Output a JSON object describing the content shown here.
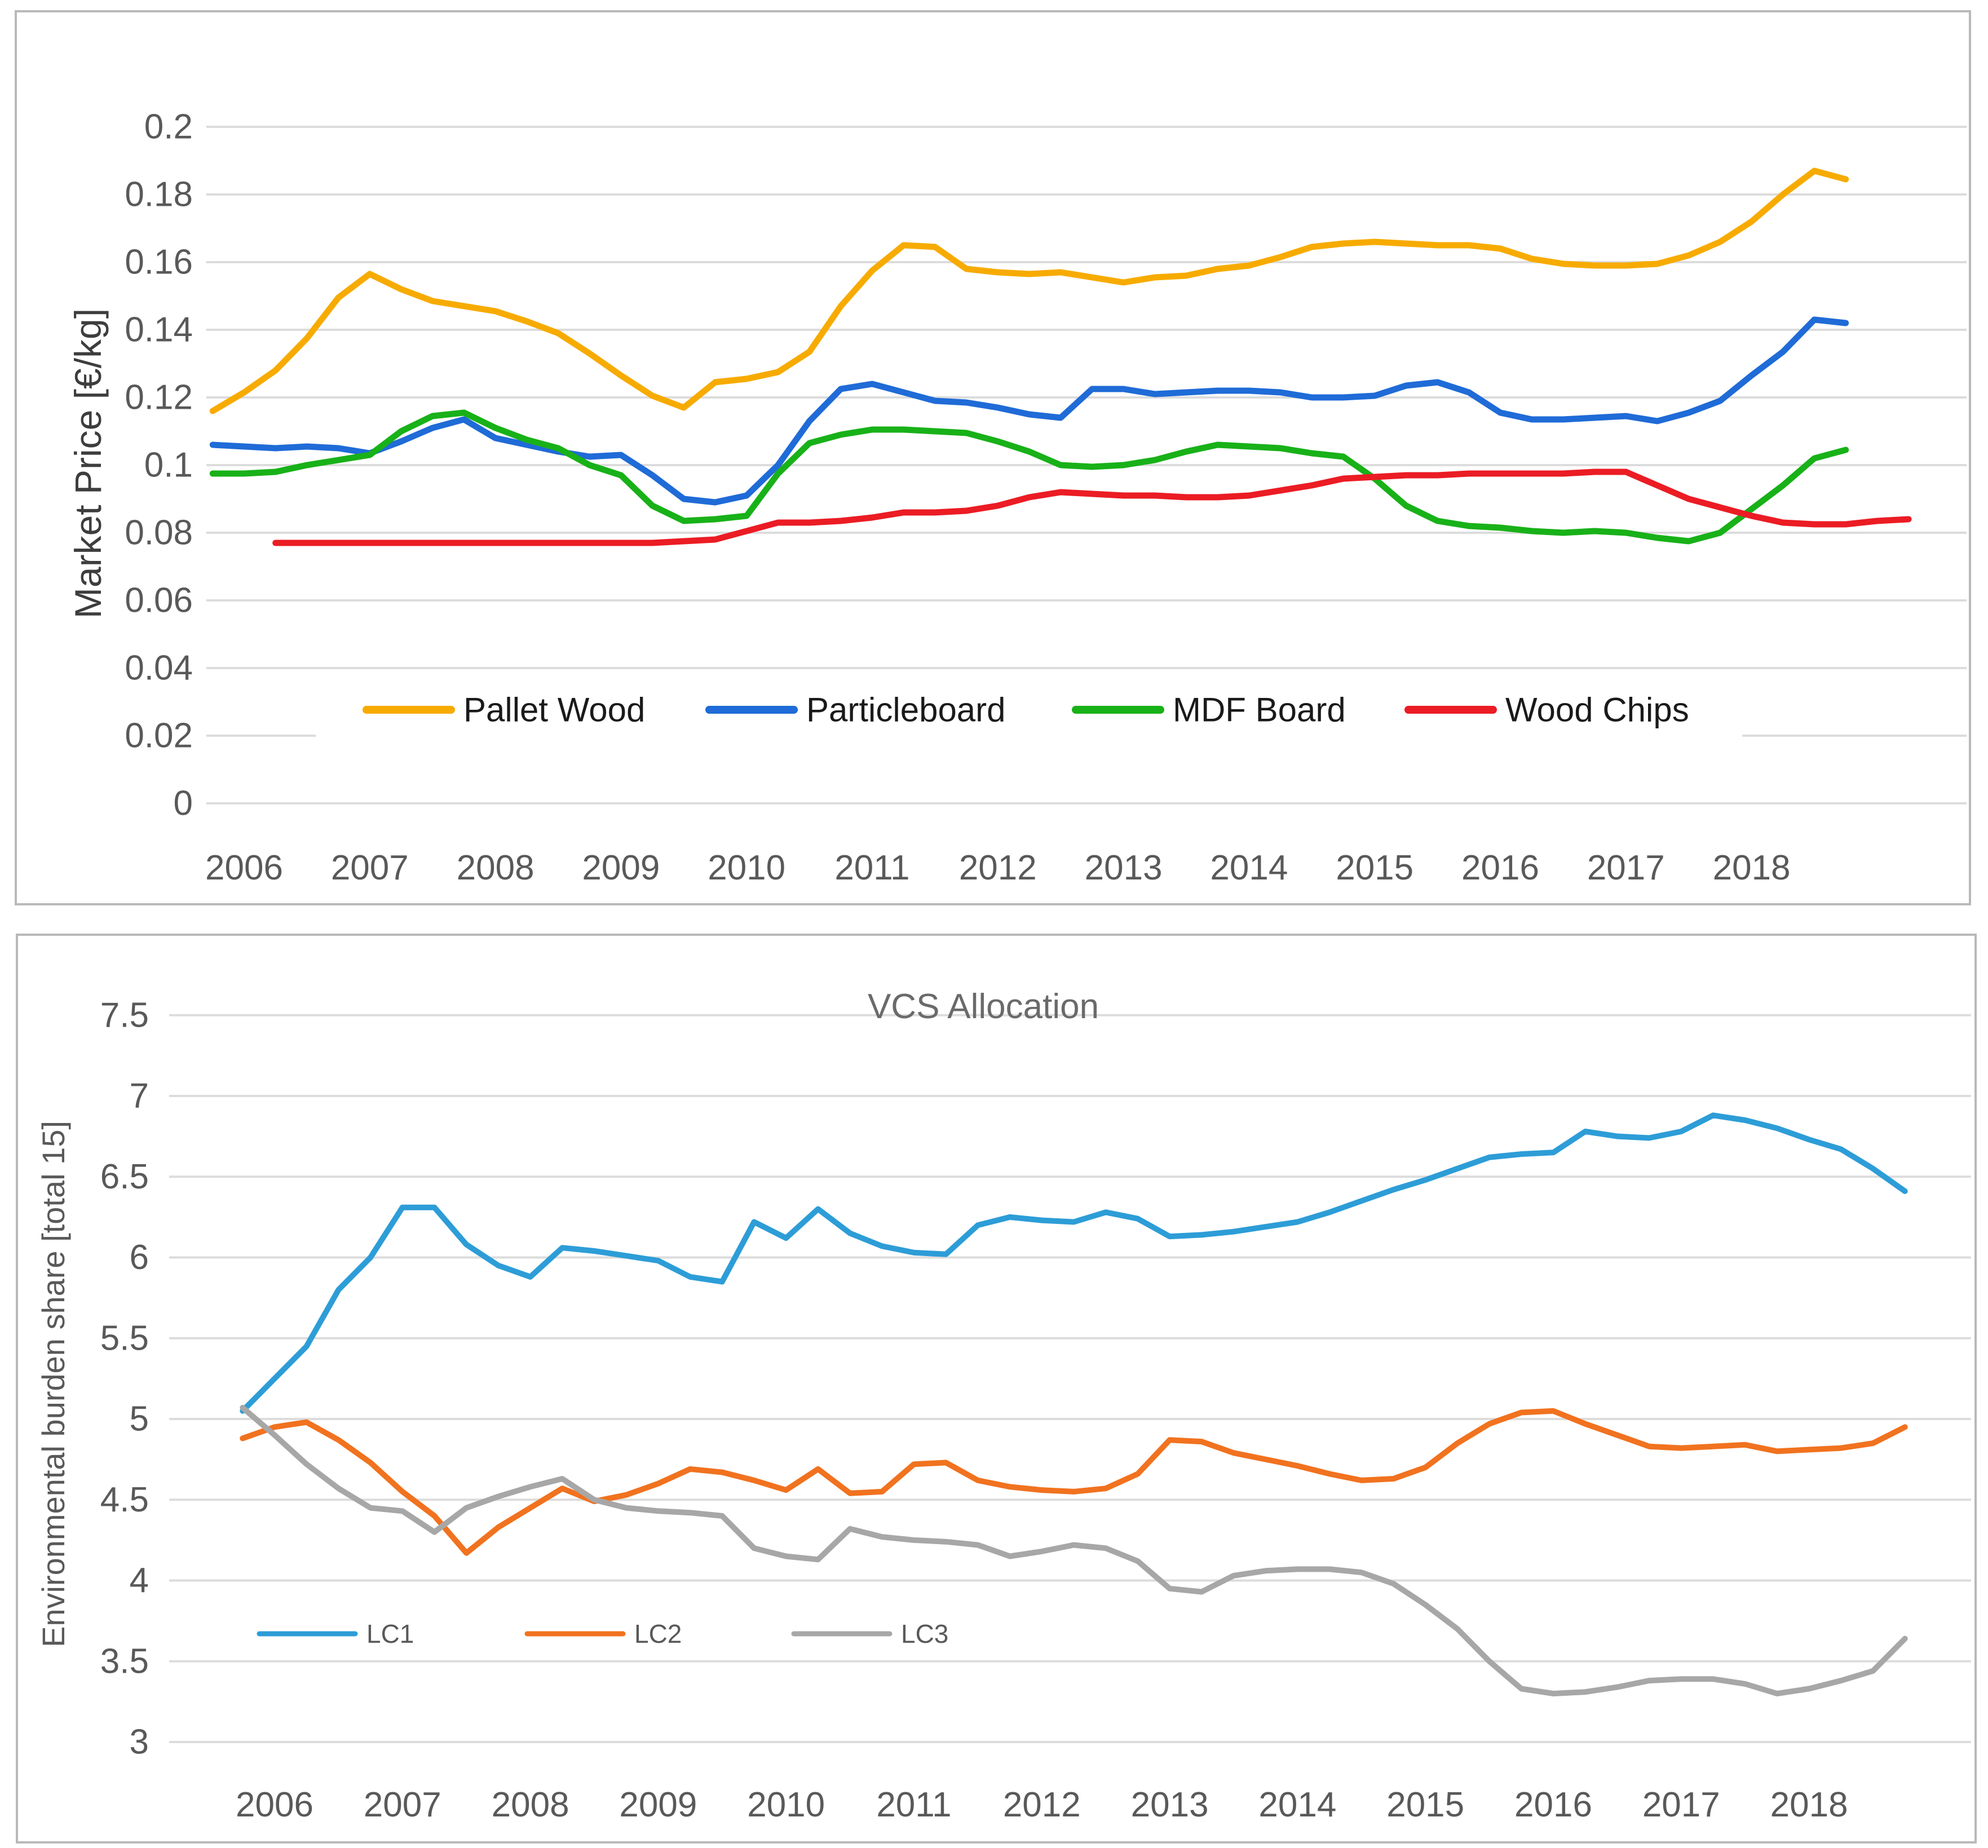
{
  "page": {
    "background": "#ffffff",
    "panel_border_color": "#b9b9b9",
    "gridline_color": "#dcdcdc",
    "tick_text_color": "#595959"
  },
  "chart_data": [
    {
      "type": "line",
      "title": "",
      "ylabel": "Market Price [€/kg]",
      "xlabel": "",
      "ylim": [
        0,
        0.2
      ],
      "grid": true,
      "legend_position": "inside-bottom",
      "yticks": [
        0,
        0.02,
        0.04,
        0.06,
        0.08,
        0.1,
        0.12,
        0.14,
        0.16,
        0.18,
        0.2
      ],
      "ytick_labels": [
        "0",
        "0.02",
        "0.04",
        "0.06",
        "0.08",
        "0.1",
        "0.12",
        "0.14",
        "0.16",
        "0.18",
        "0.2"
      ],
      "xticks": [
        2006,
        2007,
        2008,
        2009,
        2010,
        2011,
        2012,
        2013,
        2014,
        2015,
        2016,
        2017,
        2018
      ],
      "x": [
        2005.75,
        2006,
        2006.25,
        2006.5,
        2006.75,
        2007,
        2007.25,
        2007.5,
        2007.75,
        2008,
        2008.25,
        2008.5,
        2008.75,
        2009,
        2009.25,
        2009.5,
        2009.75,
        2010,
        2010.25,
        2010.5,
        2010.75,
        2011,
        2011.25,
        2011.5,
        2011.75,
        2012,
        2012.25,
        2012.5,
        2012.75,
        2013,
        2013.25,
        2013.5,
        2013.75,
        2014,
        2014.25,
        2014.5,
        2014.75,
        2015,
        2015.25,
        2015.5,
        2015.75,
        2016,
        2016.25,
        2016.5,
        2016.75,
        2017,
        2017.25,
        2017.5,
        2017.75,
        2018,
        2018.25,
        2018.5,
        2018.75,
        2019,
        2019.25
      ],
      "series": [
        {
          "name": "Pallet Wood",
          "color": "#F7AB00",
          "values": [
            0.116,
            0.1215,
            0.128,
            0.1375,
            0.1495,
            0.1565,
            0.152,
            0.1485,
            0.147,
            0.1455,
            0.1425,
            0.139,
            0.133,
            0.1265,
            0.1205,
            0.117,
            0.1245,
            0.1255,
            0.1275,
            0.1335,
            0.147,
            0.1575,
            0.165,
            0.1645,
            0.158,
            0.157,
            0.1565,
            0.157,
            0.1555,
            0.154,
            0.1555,
            0.156,
            0.158,
            0.159,
            0.1615,
            0.1645,
            0.1655,
            0.166,
            0.1655,
            0.165,
            0.165,
            0.164,
            0.161,
            0.1595,
            0.159,
            0.159,
            0.1595,
            0.162,
            0.166,
            0.172,
            0.18,
            0.187,
            0.1845,
            null,
            null
          ]
        },
        {
          "name": "Particleboard",
          "color": "#1F6BD7",
          "values": [
            0.106,
            0.1055,
            0.105,
            0.1055,
            0.105,
            0.1035,
            0.107,
            0.111,
            0.1135,
            0.108,
            0.106,
            0.104,
            0.1025,
            0.103,
            0.097,
            0.09,
            0.089,
            0.091,
            0.1,
            0.113,
            0.1225,
            0.124,
            0.1215,
            0.119,
            0.1185,
            0.117,
            0.115,
            0.114,
            0.1225,
            0.1225,
            0.121,
            0.1215,
            0.122,
            0.122,
            0.1215,
            0.12,
            0.12,
            0.1205,
            0.1235,
            0.1245,
            0.1215,
            0.1155,
            0.1135,
            0.1135,
            0.114,
            0.1145,
            0.113,
            0.1155,
            0.119,
            0.1265,
            0.1335,
            0.143,
            0.142,
            null,
            null
          ]
        },
        {
          "name": "MDF Board",
          "color": "#18B118",
          "values": [
            0.0975,
            0.0975,
            0.098,
            0.1,
            0.1015,
            0.103,
            0.11,
            0.1145,
            0.1155,
            0.111,
            0.1075,
            0.105,
            0.1,
            0.097,
            0.088,
            0.0835,
            0.084,
            0.085,
            0.0975,
            0.1065,
            0.109,
            0.1105,
            0.1105,
            0.11,
            0.1095,
            0.107,
            0.104,
            0.1,
            0.0995,
            0.1,
            0.1015,
            0.104,
            0.106,
            0.1055,
            0.105,
            0.1035,
            0.1025,
            0.096,
            0.088,
            0.0835,
            0.082,
            0.0815,
            0.0805,
            0.08,
            0.0805,
            0.08,
            0.0785,
            0.0775,
            0.08,
            0.087,
            0.094,
            0.102,
            0.1045,
            null,
            null
          ]
        },
        {
          "name": "Wood Chips",
          "color": "#EB1C24",
          "values": [
            null,
            null,
            0.077,
            0.077,
            0.077,
            0.077,
            0.077,
            0.077,
            0.077,
            0.077,
            0.077,
            0.077,
            0.077,
            0.077,
            0.077,
            0.0775,
            0.078,
            0.0805,
            0.083,
            0.083,
            0.0835,
            0.0845,
            0.086,
            0.086,
            0.0865,
            0.088,
            0.0905,
            0.092,
            0.0915,
            0.091,
            0.091,
            0.0905,
            0.0905,
            0.091,
            0.0925,
            0.094,
            0.096,
            0.0965,
            0.097,
            0.097,
            0.0975,
            0.0975,
            0.0975,
            0.0975,
            0.098,
            0.098,
            0.094,
            0.09,
            0.0875,
            0.085,
            0.083,
            0.0825,
            0.0825,
            0.0835,
            0.084
          ]
        }
      ]
    },
    {
      "type": "line",
      "title": "VCS Allocation",
      "ylabel": "Environmental burden share  [total 15]",
      "xlabel": "",
      "ylim": [
        3,
        7.5
      ],
      "grid": true,
      "legend_position": "inside-bottom-left",
      "yticks": [
        3,
        3.5,
        4,
        4.5,
        5,
        5.5,
        6,
        6.5,
        7,
        7.5
      ],
      "ytick_labels": [
        "3",
        "3.5",
        "4",
        "4.5",
        "5",
        "5.5",
        "6",
        "6.5",
        "7",
        "7.5"
      ],
      "xticks": [
        2006,
        2007,
        2008,
        2009,
        2010,
        2011,
        2012,
        2013,
        2014,
        2015,
        2016,
        2017,
        2018
      ],
      "x": [
        2005.75,
        2006,
        2006.25,
        2006.5,
        2006.75,
        2007,
        2007.25,
        2007.5,
        2007.75,
        2008,
        2008.25,
        2008.5,
        2008.75,
        2009,
        2009.25,
        2009.5,
        2009.75,
        2010,
        2010.25,
        2010.5,
        2010.75,
        2011,
        2011.25,
        2011.5,
        2011.75,
        2012,
        2012.25,
        2012.5,
        2012.75,
        2013,
        2013.25,
        2013.5,
        2013.75,
        2014,
        2014.25,
        2014.5,
        2014.75,
        2015,
        2015.25,
        2015.5,
        2015.75,
        2016,
        2016.25,
        2016.5,
        2016.75,
        2017,
        2017.25,
        2017.5,
        2017.75,
        2018,
        2018.25,
        2018.5,
        2018.75
      ],
      "series": [
        {
          "name": "LC1",
          "color": "#2D9DD7",
          "values": [
            5.05,
            5.25,
            5.45,
            5.8,
            6.0,
            6.31,
            6.31,
            6.08,
            5.95,
            5.88,
            6.06,
            6.04,
            6.01,
            5.98,
            5.88,
            5.85,
            6.22,
            6.12,
            6.3,
            6.15,
            6.07,
            6.03,
            6.02,
            6.2,
            6.25,
            6.23,
            6.22,
            6.28,
            6.24,
            6.13,
            6.14,
            6.16,
            6.19,
            6.22,
            6.28,
            6.35,
            6.42,
            6.48,
            6.55,
            6.62,
            6.64,
            6.65,
            6.78,
            6.75,
            6.74,
            6.78,
            6.88,
            6.85,
            6.8,
            6.73,
            6.67,
            6.55,
            6.41
          ]
        },
        {
          "name": "LC2",
          "color": "#F1721F",
          "values": [
            4.88,
            4.95,
            4.98,
            4.87,
            4.73,
            4.55,
            4.4,
            4.17,
            4.33,
            4.45,
            4.57,
            4.49,
            4.53,
            4.6,
            4.69,
            4.67,
            4.62,
            4.56,
            4.69,
            4.54,
            4.55,
            4.72,
            4.73,
            4.62,
            4.58,
            4.56,
            4.55,
            4.57,
            4.66,
            4.87,
            4.86,
            4.79,
            4.75,
            4.71,
            4.66,
            4.62,
            4.63,
            4.7,
            4.85,
            4.97,
            5.04,
            5.05,
            4.97,
            4.9,
            4.83,
            4.82,
            4.83,
            4.84,
            4.8,
            4.81,
            4.82,
            4.85,
            4.95
          ]
        },
        {
          "name": "LC3",
          "color": "#A7A7A7",
          "values": [
            5.07,
            4.9,
            4.72,
            4.57,
            4.45,
            4.43,
            4.3,
            4.45,
            4.52,
            4.58,
            4.63,
            4.5,
            4.45,
            4.43,
            4.42,
            4.4,
            4.2,
            4.15,
            4.13,
            4.32,
            4.27,
            4.25,
            4.24,
            4.22,
            4.15,
            4.18,
            4.22,
            4.2,
            4.12,
            3.95,
            3.93,
            4.03,
            4.06,
            4.07,
            4.07,
            4.05,
            3.98,
            3.85,
            3.7,
            3.5,
            3.33,
            3.3,
            3.31,
            3.34,
            3.38,
            3.39,
            3.39,
            3.36,
            3.3,
            3.33,
            3.38,
            3.44,
            3.64
          ]
        }
      ]
    }
  ]
}
